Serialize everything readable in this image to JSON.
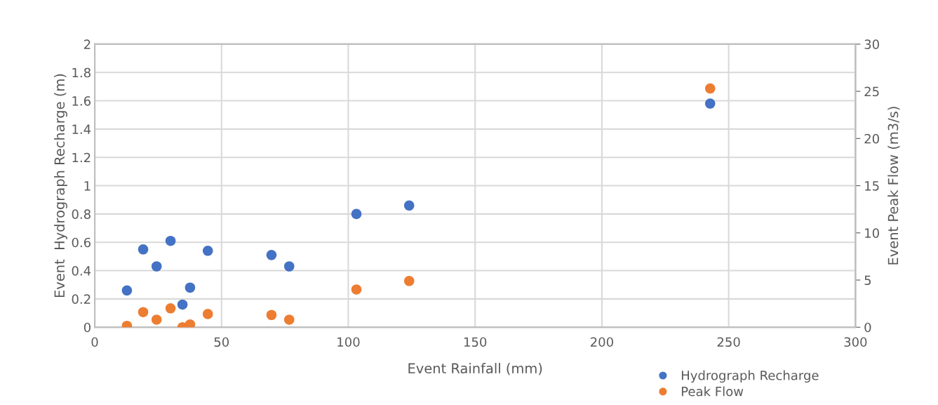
{
  "chart_data": {
    "type": "scatter",
    "xlabel": "Event Rainfall (mm)",
    "ylabel": "Event  Hydrograph Recharge (m)",
    "y2label": "Event Peak Flow (m3/s)",
    "x": [
      12.7,
      19.1,
      24.4,
      29.9,
      34.6,
      37.6,
      44.6,
      69.7,
      76.7,
      103.2,
      124,
      242.7
    ],
    "series": [
      {
        "name": "Hydrograph Recharge",
        "color": "#4472c4",
        "values": [
          0.26,
          0.55,
          0.43,
          0.61,
          0.16,
          0.28,
          0.54,
          0.51,
          0.43,
          0.8,
          0.86,
          1.58
        ]
      },
      {
        "name": "Peak Flow",
        "color": "#ed7d31",
        "axis": "y2",
        "values": [
          0.15,
          1.6,
          0.8,
          2.0,
          0.0,
          0.3,
          1.4,
          1.3,
          0.8,
          4.0,
          4.9,
          25.3
        ]
      }
    ],
    "xlim": [
      0,
      300
    ],
    "xticks": [
      0,
      50,
      100,
      150,
      200,
      250,
      300
    ],
    "ylim": [
      0,
      2
    ],
    "yticks": [
      0,
      {
        "value": 0.2,
        "label": "0.2"
      },
      {
        "value": 0.4,
        "label": "0.4"
      },
      {
        "value": 0.6,
        "label": "0.6"
      },
      {
        "value": 0.8,
        "label": "0.8"
      },
      1,
      {
        "value": 1.2,
        "label": "1.2"
      },
      {
        "value": 1.4,
        "label": "1.4"
      },
      {
        "value": 1.6,
        "label": "1.6"
      },
      {
        "value": 1.8,
        "label": "1.8"
      },
      2
    ],
    "y2lim": [
      0,
      30
    ],
    "y2ticks": [
      0,
      5,
      10,
      15,
      20,
      25,
      30
    ],
    "grid": true,
    "legend": "bottom right",
    "marker": "circle"
  }
}
